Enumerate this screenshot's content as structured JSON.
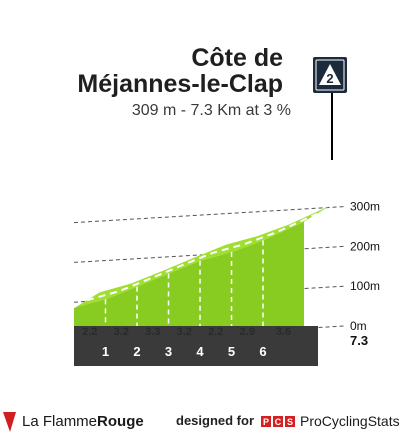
{
  "climb": {
    "name_line1": "Côte de",
    "name_line2": "Méjannes-le-Clap",
    "summary": "309 m - 7.3 Km at 3 %",
    "category": "2"
  },
  "chart_data": {
    "type": "area",
    "title": "Côte de Méjannes-le-Clap",
    "subtitle": "309 m - 7.3 Km at 3 %",
    "x_unit": "km",
    "y_unit": "m",
    "x_range": [
      0,
      7.3
    ],
    "ylim": [
      -100,
      310
    ],
    "x_ticks": [
      1,
      2,
      3,
      4,
      5,
      6
    ],
    "y_ticks": [
      {
        "value": 300,
        "label": "300m"
      },
      {
        "value": 200,
        "label": "200m"
      },
      {
        "value": 100,
        "label": "100m"
      },
      {
        "value": 0,
        "label": "0m"
      }
    ],
    "end_label": "7.3",
    "profile": {
      "x": [
        0,
        1,
        2,
        3,
        4,
        5,
        6,
        7.3
      ],
      "y": [
        85,
        107,
        139,
        172,
        204,
        226,
        255,
        302
      ]
    },
    "segment_gradients": [
      {
        "from_km": 0,
        "to_km": 1,
        "gradient": "2.2"
      },
      {
        "from_km": 1,
        "to_km": 2,
        "gradient": "3.2"
      },
      {
        "from_km": 2,
        "to_km": 3,
        "gradient": "3.3"
      },
      {
        "from_km": 3,
        "to_km": 4,
        "gradient": "3.2"
      },
      {
        "from_km": 4,
        "to_km": 5,
        "gradient": "2.2"
      },
      {
        "from_km": 5,
        "to_km": 6,
        "gradient": "2.9"
      },
      {
        "from_km": 6,
        "to_km": 7.3,
        "gradient": "3.6"
      }
    ],
    "colors": {
      "fill": "#88cc22",
      "top": "#9edf2f",
      "side": "#a89c92",
      "base": "#3a3a3a",
      "km_label": "#ffffff"
    }
  },
  "footer": {
    "brand_left": "La Flamme",
    "brand_right": "Rouge",
    "designed_for": "designed for",
    "pcs_letters": [
      "P",
      "C",
      "S"
    ],
    "pcs_name": "ProCyclingStats"
  }
}
